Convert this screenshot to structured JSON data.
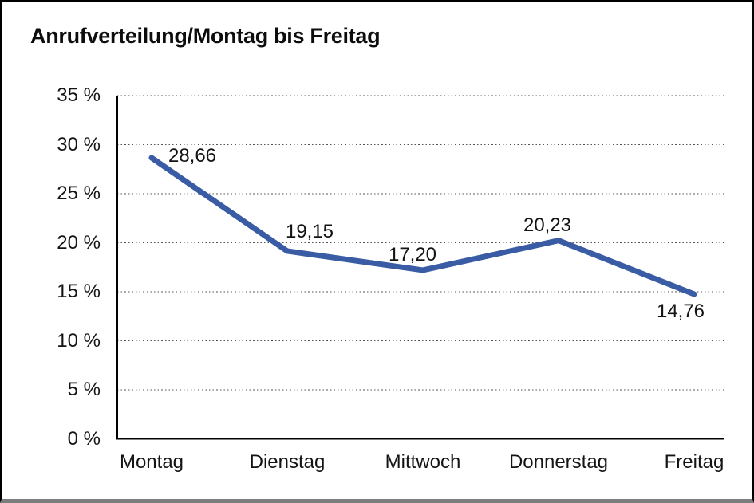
{
  "chart_data": {
    "type": "line",
    "title": "Anrufverteilung/Montag bis Freitag",
    "categories": [
      "Montag",
      "Dienstag",
      "Mittwoch",
      "Donnerstag",
      "Freitag"
    ],
    "values": [
      28.66,
      19.15,
      17.2,
      20.23,
      14.76
    ],
    "point_labels": [
      "28,66",
      "19,15",
      "17,20",
      "20,23",
      "14,76"
    ],
    "xlabel": "",
    "ylabel": "",
    "ylim": [
      0,
      35
    ],
    "ytick_step": 5,
    "ytick_labels": [
      "0 %",
      "5 %",
      "10 %",
      "15 %",
      "20 %",
      "25 %",
      "30 %",
      "35 %"
    ],
    "grid": "horizontal-dotted",
    "legend": "none",
    "line_color": "#3A5CA4",
    "axis_color": "#000000",
    "gridline_color": "#555555",
    "label_color": "#141414",
    "frame_border_color": "#000000",
    "frame_shadow_color": "#7d7d7d",
    "background_color": "#ffffff"
  }
}
